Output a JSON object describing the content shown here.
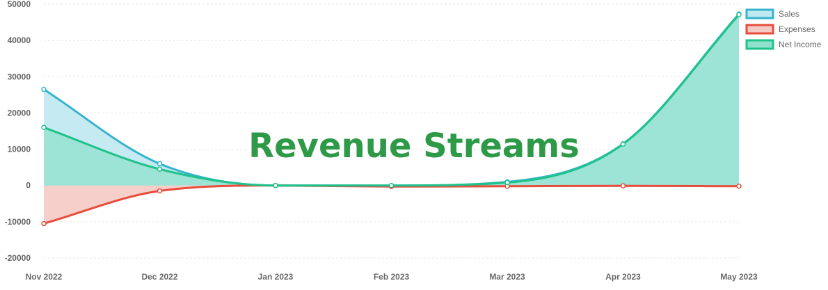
{
  "chart_data": {
    "type": "line",
    "categories": [
      "Nov 2022",
      "Dec 2022",
      "Jan 2023",
      "Feb 2023",
      "Mar 2023",
      "Apr 2023",
      "May 2023"
    ],
    "series": [
      {
        "name": "Sales",
        "values": [
          26500,
          6000,
          0,
          0,
          1000,
          11500,
          47300
        ],
        "color": "#36b4cf",
        "fill": "#bfe8f0"
      },
      {
        "name": "Expenses",
        "values": [
          -10500,
          -1500,
          0,
          -300,
          -200,
          -100,
          -200
        ],
        "color": "#e74c3c",
        "fill": "#f5c9c4"
      },
      {
        "name": "Net Income",
        "values": [
          16000,
          4500,
          0,
          0,
          800,
          11400,
          47100
        ],
        "color": "#1fc38a",
        "fill": "#8fe0cc"
      }
    ],
    "y_ticks": [
      "50000",
      "40000",
      "30000",
      "20000",
      "10000",
      "0",
      "-10000",
      "-20000"
    ],
    "ylim": [
      -20000,
      50000
    ],
    "fill": true,
    "grid": true,
    "legend": "top-right",
    "title": "Revenue Streams",
    "title_color": "#2e9a48"
  }
}
